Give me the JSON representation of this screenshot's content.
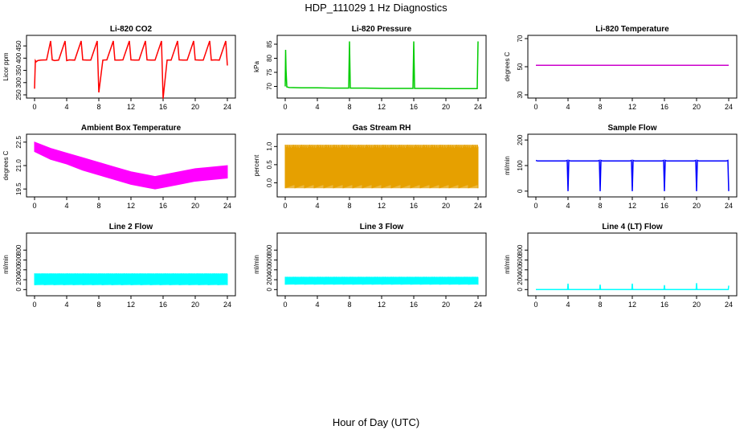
{
  "figure": {
    "title": "HDP_111029  1 Hz Diagnostics",
    "xlabel": "Hour of Day (UTC)"
  },
  "chart_data": [
    {
      "type": "line",
      "title": "Li-820 CO2",
      "ylabel": "Licor ppm",
      "color": "#ff0000",
      "xlim": [
        0,
        24
      ],
      "ylim": [
        250,
        480
      ],
      "yticks": [
        250,
        300,
        350,
        400,
        450
      ],
      "xticks": [
        0,
        4,
        8,
        12,
        16,
        20,
        24
      ],
      "x": [
        0,
        0.1,
        0.2,
        0.4,
        0.8,
        1.5,
        2.0,
        2.2,
        2.5,
        3.0,
        3.8,
        4.0,
        4.3,
        5.0,
        5.8,
        6.0,
        6.5,
        7.0,
        7.8,
        8.0,
        8.5,
        9.0,
        9.8,
        10.0,
        10.5,
        11.0,
        11.8,
        12.0,
        12.5,
        13.0,
        13.8,
        14.0,
        14.5,
        15.0,
        15.8,
        16.0,
        16.5,
        17.0,
        17.8,
        18.0,
        18.5,
        19.0,
        19.8,
        20.0,
        20.5,
        21.0,
        21.8,
        22.0,
        22.5,
        23.0,
        23.8,
        24.0
      ],
      "y": [
        275,
        390,
        385,
        390,
        392,
        393,
        470,
        393,
        390,
        392,
        470,
        390,
        393,
        392,
        470,
        393,
        392,
        392,
        470,
        260,
        392,
        393,
        470,
        392,
        392,
        393,
        470,
        393,
        392,
        392,
        470,
        393,
        392,
        392,
        470,
        235,
        392,
        392,
        470,
        393,
        392,
        392,
        470,
        393,
        392,
        392,
        470,
        392,
        393,
        392,
        470,
        370
      ]
    },
    {
      "type": "line",
      "title": "Li-820 Pressure",
      "ylabel": "kPa",
      "color": "#00cc00",
      "xlim": [
        0,
        24
      ],
      "ylim": [
        67,
        87
      ],
      "yticks": [
        70,
        75,
        80,
        85
      ],
      "xticks": [
        0,
        4,
        8,
        12,
        16,
        20,
        24
      ],
      "x": [
        0,
        0.05,
        0.1,
        0.2,
        0.5,
        2,
        4,
        6,
        7.9,
        8.0,
        8.1,
        10,
        12,
        14,
        15.9,
        16.0,
        16.1,
        18,
        20,
        22,
        23.9,
        24.0
      ],
      "y": [
        70,
        83,
        76,
        69.8,
        69.6,
        69.5,
        69.5,
        69.4,
        69.4,
        86,
        69.4,
        69.4,
        69.3,
        69.3,
        69.3,
        86,
        69.3,
        69.3,
        69.2,
        69.2,
        69.2,
        86
      ]
    },
    {
      "type": "line",
      "title": "Li-820 Temperature",
      "ylabel": "degrees C",
      "color": "#cc00cc",
      "xlim": [
        0,
        24
      ],
      "ylim": [
        30,
        70
      ],
      "yticks": [
        30,
        50,
        70
      ],
      "xticks": [
        0,
        4,
        8,
        12,
        16,
        20,
        24
      ],
      "x": [
        0,
        24
      ],
      "y": [
        51,
        51
      ]
    },
    {
      "type": "area",
      "title": "Ambient Box Temperature",
      "ylabel": "degrees C",
      "color": "#ff00ff",
      "xlim": [
        0,
        24
      ],
      "ylim": [
        19.2,
        22.8
      ],
      "yticks": [
        19.5,
        21.0,
        22.5
      ],
      "xticks": [
        0,
        4,
        8,
        12,
        16,
        20,
        24
      ],
      "x": [
        0,
        2,
        4,
        6,
        8,
        10,
        12,
        14,
        15,
        16,
        18,
        20,
        22,
        24
      ],
      "upper": [
        22.5,
        22.1,
        21.8,
        21.5,
        21.2,
        20.9,
        20.6,
        20.4,
        20.3,
        20.4,
        20.6,
        20.8,
        20.9,
        21.0
      ],
      "lower": [
        21.9,
        21.4,
        21.1,
        20.7,
        20.4,
        20.1,
        19.8,
        19.6,
        19.5,
        19.6,
        19.8,
        20.0,
        20.1,
        20.2
      ]
    },
    {
      "type": "area",
      "title": "Gas Stream RH",
      "ylabel": "percent",
      "color": "#e6a000",
      "xlim": [
        0,
        24
      ],
      "ylim": [
        -0.3,
        1.25
      ],
      "yticks": [
        0.0,
        0.5,
        1.0
      ],
      "xticks": [
        0,
        4,
        8,
        12,
        16,
        20,
        24
      ],
      "x": [
        0,
        24
      ],
      "upper": [
        1.05,
        1.05
      ],
      "lower": [
        -0.15,
        -0.15
      ]
    },
    {
      "type": "line",
      "title": "Sample Flow",
      "ylabel": "ml/min",
      "color": "#0000ff",
      "xlim": [
        0,
        24
      ],
      "ylim": [
        -10,
        210
      ],
      "yticks": [
        0,
        100,
        200
      ],
      "xticks": [
        0,
        4,
        8,
        12,
        16,
        20,
        24
      ],
      "x": [
        0,
        0.2,
        3.7,
        3.9,
        4.0,
        4.1,
        4.3,
        7.7,
        7.9,
        8.0,
        8.1,
        8.3,
        11.7,
        11.9,
        12.0,
        12.1,
        12.3,
        15.7,
        15.9,
        16.0,
        16.1,
        16.3,
        19.7,
        19.9,
        20.0,
        20.1,
        20.3,
        23.7,
        23.9,
        24.0
      ],
      "y": [
        120,
        118,
        118,
        120,
        0,
        120,
        118,
        118,
        120,
        0,
        120,
        118,
        118,
        120,
        0,
        120,
        118,
        118,
        120,
        0,
        120,
        118,
        118,
        120,
        0,
        120,
        118,
        118,
        120,
        0
      ]
    },
    {
      "type": "area",
      "title": "Line 2 Flow",
      "ylabel": "ml/min",
      "color": "#00ffff",
      "xlim": [
        0,
        24
      ],
      "ylim": [
        -60,
        1080
      ],
      "yticks": [
        0,
        200,
        400,
        600,
        800
      ],
      "xticks": [
        0,
        4,
        8,
        12,
        16,
        20,
        24
      ],
      "x": [
        0,
        24
      ],
      "upper": [
        330,
        330
      ],
      "lower": [
        90,
        90
      ]
    },
    {
      "type": "area",
      "title": "Line 3 Flow",
      "ylabel": "ml/min",
      "color": "#00ffff",
      "xlim": [
        0,
        24
      ],
      "ylim": [
        -60,
        1080
      ],
      "yticks": [
        0,
        200,
        400,
        600,
        800
      ],
      "xticks": [
        0,
        4,
        8,
        12,
        16,
        20,
        24
      ],
      "x": [
        0,
        24
      ],
      "upper": [
        260,
        260
      ],
      "lower": [
        100,
        100
      ]
    },
    {
      "type": "line",
      "title": "Line 4 (LT) Flow",
      "ylabel": "ml/min",
      "color": "#00ffff",
      "xlim": [
        0,
        24
      ],
      "ylim": [
        -60,
        1080
      ],
      "yticks": [
        0,
        200,
        400,
        600,
        800
      ],
      "xticks": [
        0,
        4,
        8,
        12,
        16,
        20,
        24
      ],
      "x": [
        0,
        3.95,
        4.0,
        4.05,
        7.95,
        8.0,
        8.05,
        11.95,
        12.0,
        12.05,
        15.95,
        16.0,
        16.05,
        19.95,
        20.0,
        20.05,
        23.95,
        24.0
      ],
      "y": [
        0,
        0,
        120,
        0,
        0,
        100,
        0,
        0,
        120,
        0,
        0,
        90,
        0,
        0,
        130,
        0,
        0,
        80
      ]
    }
  ]
}
